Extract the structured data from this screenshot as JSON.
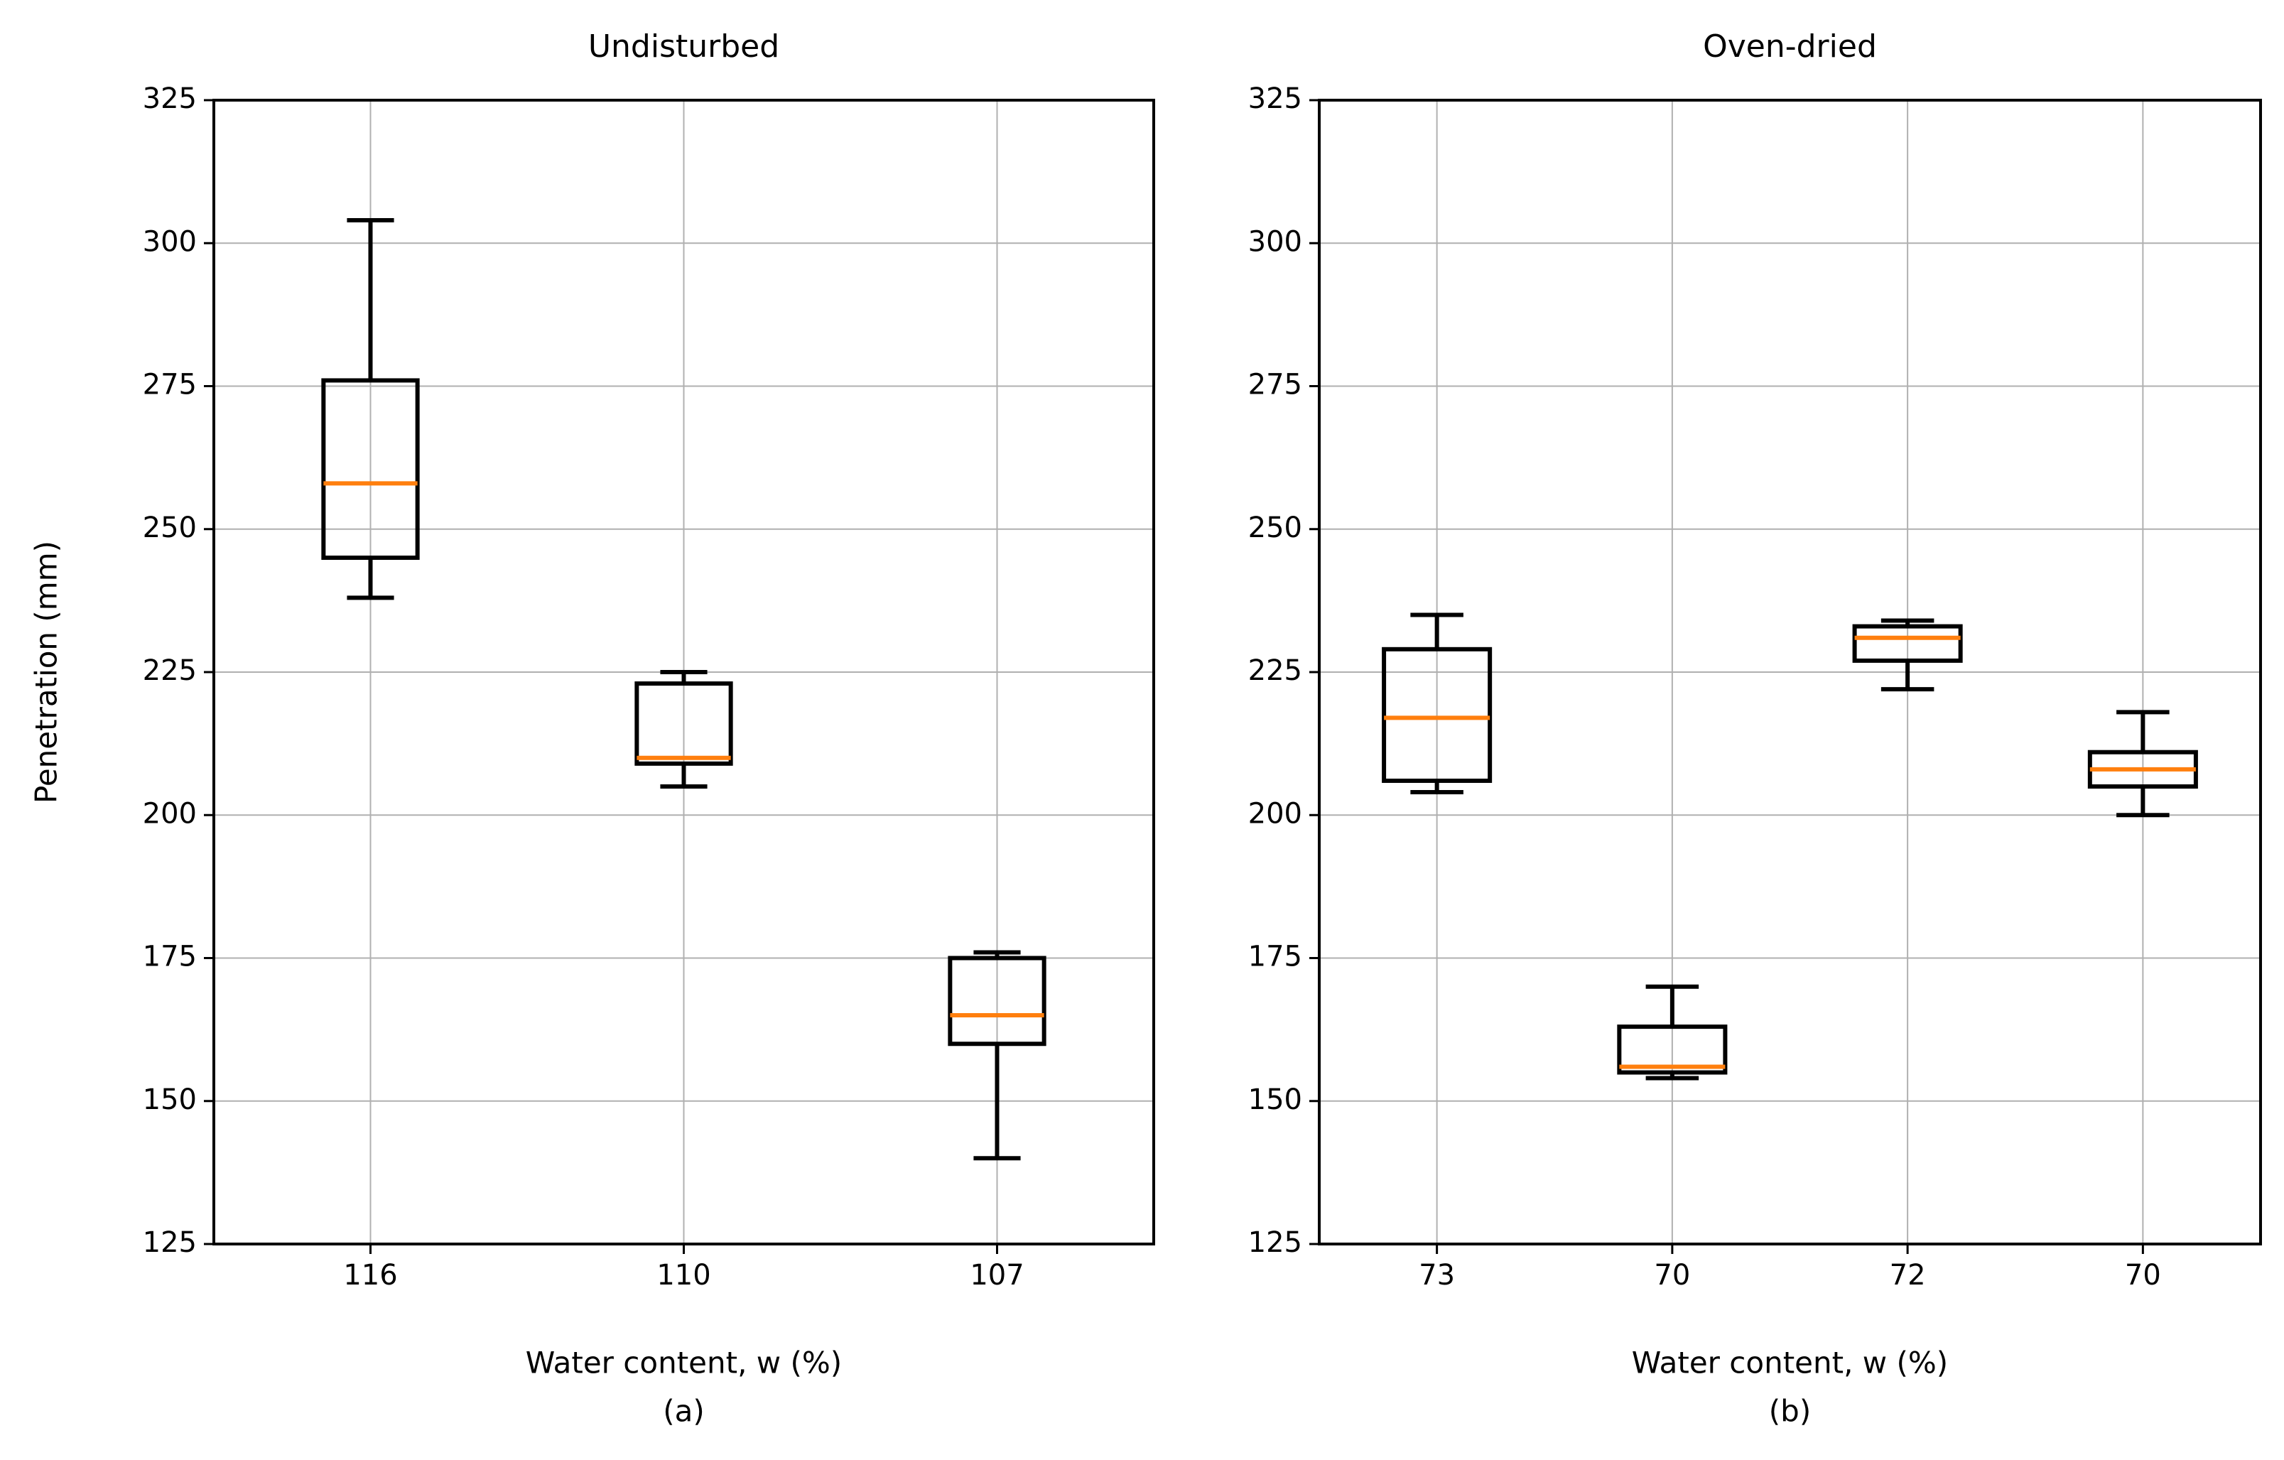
{
  "chart_data": [
    {
      "type": "box",
      "title": "Undisturbed",
      "xlabel": "Water content, w (%)",
      "sublabel": "(a)",
      "ylabel": "Penetration (mm)",
      "categories": [
        "116",
        "110",
        "107"
      ],
      "boxes": [
        {
          "whislo": 238,
          "q1": 245,
          "med": 258,
          "q3": 276,
          "whishi": 304
        },
        {
          "whislo": 205,
          "q1": 209,
          "med": 210,
          "q3": 223,
          "whishi": 225
        },
        {
          "whislo": 140,
          "q1": 160,
          "med": 165,
          "q3": 175,
          "whishi": 176
        }
      ],
      "color": "#000000",
      "median_color": "#ff7f0e",
      "ylim": [
        125,
        325
      ],
      "yticks": [
        125,
        150,
        175,
        200,
        225,
        250,
        275,
        300,
        325
      ],
      "grid": true
    },
    {
      "type": "box",
      "title": "Oven-dried",
      "xlabel": "Water content, w (%)",
      "sublabel": "(b)",
      "categories": [
        "73",
        "70",
        "72",
        "70"
      ],
      "boxes": [
        {
          "whislo": 204,
          "q1": 206,
          "med": 217,
          "q3": 229,
          "whishi": 235
        },
        {
          "whislo": 154,
          "q1": 155,
          "med": 156,
          "q3": 163,
          "whishi": 170
        },
        {
          "whislo": 222,
          "q1": 227,
          "med": 231,
          "q3": 233,
          "whishi": 234
        },
        {
          "whislo": 200,
          "q1": 205,
          "med": 208,
          "q3": 211,
          "whishi": 218
        }
      ],
      "color": "#000000",
      "median_color": "#ff7f0e",
      "ylim": [
        125,
        325
      ],
      "yticks": [
        125,
        150,
        175,
        200,
        225,
        250,
        275,
        300,
        325
      ],
      "grid": true
    }
  ]
}
